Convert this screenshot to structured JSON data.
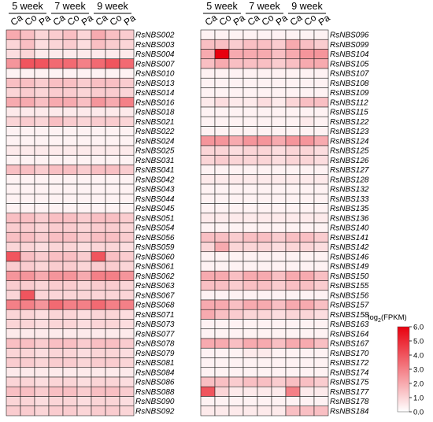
{
  "chart_data": [
    {
      "type": "heatmap",
      "week_groups": [
        "5 week",
        "7 week",
        "9 week"
      ],
      "columns": [
        "Ca",
        "Co",
        "Pa",
        "Ca",
        "Co",
        "Pa",
        "Ca",
        "Co",
        "Pa"
      ],
      "rows": [
        "RsNBS002",
        "RsNBS003",
        "RsNBS004",
        "RsNBS007",
        "RsNBS010",
        "RsNBS013",
        "RsNBS014",
        "RsNBS016",
        "RsNBS018",
        "RsNBS021",
        "RsNBS022",
        "RsNBS024",
        "RsNBS025",
        "RsNBS031",
        "RsNBS041",
        "RsNBS042",
        "RsNBS043",
        "RsNBS044",
        "RsNBS045",
        "RsNBS051",
        "RsNBS054",
        "RsNBS056",
        "RsNBS059",
        "RsNBS060",
        "RsNBS061",
        "RsNBS062",
        "RsNBS063",
        "RsNBS067",
        "RsNBS068",
        "RsNBS071",
        "RsNBS073",
        "RsNBS077",
        "RsNBS078",
        "RsNBS079",
        "RsNBS081",
        "RsNBS084",
        "RsNBS086",
        "RsNBS088",
        "RsNBS090",
        "RsNBS092"
      ],
      "values": [
        [
          2.0,
          1.5,
          1.0,
          1.2,
          1.5,
          1.0,
          2.0,
          1.5,
          1.2
        ],
        [
          1.0,
          1.5,
          0.8,
          1.0,
          1.2,
          0.8,
          1.5,
          1.2,
          1.0
        ],
        [
          0.8,
          1.0,
          0.5,
          0.5,
          0.5,
          0.5,
          0.5,
          0.5,
          0.5
        ],
        [
          2.5,
          4.0,
          4.0,
          3.5,
          3.5,
          3.0,
          3.5,
          4.0,
          3.5
        ],
        [
          0.3,
          0.3,
          0.3,
          0.3,
          0.3,
          0.3,
          0.3,
          0.3,
          0.3
        ],
        [
          1.5,
          1.5,
          1.2,
          1.5,
          1.5,
          1.2,
          1.5,
          1.5,
          1.2
        ],
        [
          1.0,
          1.2,
          1.0,
          1.2,
          1.2,
          1.0,
          1.2,
          1.2,
          1.0
        ],
        [
          2.0,
          2.0,
          1.5,
          2.0,
          2.0,
          1.5,
          2.5,
          2.0,
          3.0
        ],
        [
          0.5,
          0.5,
          0.5,
          0.5,
          0.5,
          0.5,
          0.5,
          0.5,
          0.5
        ],
        [
          1.0,
          1.2,
          1.0,
          1.5,
          1.2,
          1.0,
          1.2,
          1.2,
          1.0
        ],
        [
          0.3,
          0.3,
          0.3,
          0.3,
          0.3,
          0.3,
          0.3,
          0.3,
          0.3
        ],
        [
          0.3,
          0.3,
          0.3,
          0.3,
          0.3,
          0.3,
          0.3,
          0.3,
          0.3
        ],
        [
          0.5,
          0.5,
          0.5,
          0.5,
          0.5,
          0.5,
          0.5,
          0.5,
          0.5
        ],
        [
          0.3,
          0.3,
          0.3,
          0.3,
          0.3,
          0.3,
          0.3,
          0.3,
          0.3
        ],
        [
          1.5,
          1.5,
          1.2,
          1.5,
          1.5,
          1.2,
          1.5,
          1.5,
          1.2
        ],
        [
          0.3,
          0.3,
          0.3,
          0.3,
          0.3,
          0.3,
          0.3,
          0.3,
          0.3
        ],
        [
          0.3,
          0.3,
          0.3,
          0.3,
          0.3,
          0.3,
          0.3,
          0.3,
          0.3
        ],
        [
          0.3,
          0.3,
          0.3,
          0.3,
          0.3,
          0.3,
          0.3,
          0.3,
          0.3
        ],
        [
          0.3,
          0.3,
          0.3,
          0.3,
          0.3,
          0.3,
          0.3,
          0.3,
          0.3
        ],
        [
          1.5,
          1.5,
          1.2,
          1.5,
          1.5,
          1.2,
          1.5,
          1.5,
          1.2
        ],
        [
          1.2,
          1.2,
          1.0,
          1.2,
          1.2,
          1.0,
          1.2,
          1.2,
          1.0
        ],
        [
          1.5,
          1.5,
          1.2,
          1.5,
          1.5,
          1.2,
          1.5,
          1.5,
          1.2
        ],
        [
          1.0,
          1.0,
          0.8,
          1.0,
          1.0,
          0.8,
          1.0,
          1.0,
          0.8
        ],
        [
          4.0,
          1.5,
          1.2,
          1.5,
          1.5,
          1.2,
          4.0,
          1.5,
          1.2
        ],
        [
          1.2,
          1.2,
          1.0,
          1.2,
          1.2,
          1.0,
          1.2,
          1.2,
          1.0
        ],
        [
          2.5,
          2.5,
          2.0,
          2.5,
          2.5,
          2.0,
          3.0,
          3.0,
          2.5
        ],
        [
          1.2,
          1.2,
          1.0,
          1.2,
          1.2,
          1.0,
          1.2,
          1.2,
          1.0
        ],
        [
          1.0,
          4.0,
          1.0,
          1.0,
          1.0,
          1.0,
          1.0,
          1.0,
          1.0
        ],
        [
          3.0,
          3.0,
          2.5,
          3.5,
          3.0,
          3.0,
          3.5,
          3.0,
          3.0
        ],
        [
          1.0,
          1.0,
          0.8,
          1.0,
          1.0,
          0.8,
          1.0,
          1.0,
          0.8
        ],
        [
          1.0,
          1.0,
          0.8,
          1.0,
          1.0,
          0.8,
          1.0,
          1.0,
          0.8
        ],
        [
          0.5,
          0.5,
          0.5,
          0.5,
          0.5,
          0.5,
          0.5,
          0.5,
          0.5
        ],
        [
          1.5,
          1.5,
          1.2,
          1.5,
          1.5,
          1.2,
          1.5,
          1.5,
          1.2
        ],
        [
          1.0,
          1.0,
          0.8,
          1.0,
          1.0,
          0.8,
          1.0,
          1.0,
          0.8
        ],
        [
          1.2,
          1.2,
          1.0,
          1.2,
          1.2,
          1.0,
          1.2,
          1.2,
          1.0
        ],
        [
          0.5,
          0.5,
          0.5,
          0.5,
          0.5,
          0.5,
          0.5,
          0.5,
          0.5
        ],
        [
          1.0,
          1.0,
          0.8,
          1.0,
          1.0,
          0.8,
          1.0,
          1.0,
          0.8
        ],
        [
          1.5,
          1.5,
          1.2,
          1.5,
          1.5,
          1.2,
          1.5,
          1.5,
          1.2
        ],
        [
          1.0,
          1.0,
          0.8,
          1.0,
          1.0,
          0.8,
          1.0,
          1.0,
          0.8
        ],
        [
          1.2,
          1.2,
          1.0,
          1.2,
          1.2,
          1.0,
          1.2,
          1.2,
          1.0
        ]
      ]
    },
    {
      "type": "heatmap",
      "week_groups": [
        "5 week",
        "7 week",
        "9 week"
      ],
      "columns": [
        "Ca",
        "Co",
        "Pa",
        "Ca",
        "Co",
        "Pa",
        "Ca",
        "Co",
        "Pa"
      ],
      "rows": [
        "RsNBS096",
        "RsNBS099",
        "RsNBS104",
        "RsNBS105",
        "RsNBS107",
        "RsNBS108",
        "RsNBS109",
        "RsNBS112",
        "RsNBS115",
        "RsNBS122",
        "RsNBS123",
        "RsNBS124",
        "RsNBS125",
        "RsNBS126",
        "RsNBS127",
        "RsNBS128",
        "RsNBS132",
        "RsNBS133",
        "RsNBS135",
        "RsNBS136",
        "RsNBS140",
        "RsNBS141",
        "RsNBS142",
        "RsNBS146",
        "RsNBS149",
        "RsNBS150",
        "RsNBS155",
        "RsNBS156",
        "RsNBS157",
        "RsNBS158",
        "RsNBS163",
        "RsNBS164",
        "RsNBS167",
        "RsNBS170",
        "RsNBS172",
        "RsNBS174",
        "RsNBS175",
        "RsNBS177",
        "RsNBS178",
        "RsNBS184"
      ],
      "values": [
        [
          0.3,
          0.3,
          0.3,
          0.3,
          0.3,
          0.3,
          0.3,
          0.3,
          0.3
        ],
        [
          1.5,
          1.5,
          1.2,
          1.5,
          1.5,
          1.2,
          2.0,
          1.5,
          1.2
        ],
        [
          2.0,
          6.0,
          2.0,
          2.0,
          2.0,
          1.5,
          2.0,
          2.5,
          2.5
        ],
        [
          1.5,
          2.0,
          1.5,
          1.5,
          1.5,
          1.2,
          1.5,
          2.0,
          2.0
        ],
        [
          0.3,
          0.3,
          0.3,
          0.3,
          0.3,
          0.3,
          0.3,
          0.3,
          0.3
        ],
        [
          0.3,
          0.3,
          0.3,
          0.3,
          0.3,
          0.3,
          0.3,
          0.3,
          0.3
        ],
        [
          0.3,
          0.3,
          0.3,
          0.3,
          0.3,
          0.3,
          0.3,
          0.3,
          0.3
        ],
        [
          0.5,
          0.8,
          0.5,
          0.5,
          0.8,
          0.5,
          1.0,
          1.5,
          1.5
        ],
        [
          0.3,
          0.3,
          0.3,
          0.3,
          0.3,
          0.3,
          0.3,
          0.3,
          0.3
        ],
        [
          0.3,
          0.3,
          0.3,
          0.3,
          0.3,
          0.3,
          0.3,
          0.5,
          0.3
        ],
        [
          0.3,
          0.3,
          0.3,
          0.3,
          0.3,
          0.3,
          0.3,
          0.3,
          0.3
        ],
        [
          2.5,
          2.5,
          2.0,
          2.5,
          2.5,
          2.0,
          2.5,
          2.5,
          2.0
        ],
        [
          1.0,
          1.0,
          0.8,
          1.0,
          1.0,
          0.8,
          1.0,
          1.0,
          0.8
        ],
        [
          1.0,
          1.2,
          1.0,
          1.0,
          1.0,
          0.8,
          1.0,
          1.0,
          0.8
        ],
        [
          0.3,
          0.3,
          0.3,
          0.3,
          0.3,
          0.3,
          0.3,
          0.3,
          0.3
        ],
        [
          0.5,
          0.5,
          0.5,
          0.5,
          0.5,
          0.5,
          0.5,
          0.5,
          0.5
        ],
        [
          0.3,
          0.3,
          0.3,
          0.3,
          0.3,
          0.3,
          0.3,
          0.3,
          0.3
        ],
        [
          0.3,
          0.3,
          0.3,
          0.3,
          0.3,
          0.3,
          0.3,
          0.3,
          0.3
        ],
        [
          0.3,
          0.3,
          0.3,
          0.3,
          0.3,
          0.3,
          0.3,
          0.3,
          0.3
        ],
        [
          0.5,
          0.5,
          0.5,
          0.5,
          0.5,
          0.5,
          0.5,
          0.5,
          0.5
        ],
        [
          0.3,
          0.3,
          0.3,
          0.3,
          0.3,
          0.3,
          0.3,
          0.3,
          0.3
        ],
        [
          1.5,
          1.5,
          1.2,
          1.5,
          1.5,
          1.2,
          1.5,
          1.5,
          1.2
        ],
        [
          1.0,
          2.0,
          1.0,
          1.0,
          1.0,
          0.8,
          1.0,
          1.0,
          0.8
        ],
        [
          0.3,
          0.3,
          0.3,
          0.3,
          0.3,
          0.3,
          0.3,
          0.3,
          0.3
        ],
        [
          0.3,
          0.3,
          0.3,
          0.3,
          0.3,
          0.3,
          0.3,
          0.3,
          0.3
        ],
        [
          2.0,
          2.0,
          1.5,
          2.0,
          2.0,
          1.5,
          2.0,
          2.0,
          1.5
        ],
        [
          1.5,
          1.5,
          1.2,
          1.5,
          1.5,
          1.2,
          1.5,
          1.5,
          1.2
        ],
        [
          0.3,
          0.3,
          0.3,
          0.3,
          0.3,
          0.3,
          0.3,
          0.3,
          0.3
        ],
        [
          2.0,
          2.0,
          1.5,
          2.0,
          2.0,
          1.5,
          2.0,
          2.0,
          1.5
        ],
        [
          2.0,
          1.5,
          1.2,
          1.0,
          1.0,
          0.8,
          1.0,
          1.0,
          0.8
        ],
        [
          0.3,
          0.3,
          0.3,
          0.3,
          0.3,
          0.3,
          0.3,
          0.3,
          0.3
        ],
        [
          0.3,
          0.3,
          0.3,
          0.3,
          0.3,
          0.3,
          0.3,
          0.3,
          0.3
        ],
        [
          2.0,
          2.0,
          1.5,
          2.0,
          2.0,
          1.5,
          2.0,
          2.0,
          1.5
        ],
        [
          0.3,
          0.3,
          0.3,
          0.5,
          0.5,
          0.3,
          0.3,
          0.3,
          0.3
        ],
        [
          0.3,
          0.3,
          0.3,
          0.3,
          0.3,
          0.3,
          0.3,
          0.3,
          0.3
        ],
        [
          0.3,
          0.3,
          0.3,
          0.3,
          0.3,
          0.3,
          0.3,
          0.3,
          0.3
        ],
        [
          1.5,
          1.5,
          1.2,
          1.5,
          1.5,
          1.2,
          1.5,
          1.5,
          1.2
        ],
        [
          4.0,
          1.0,
          0.5,
          0.5,
          0.5,
          0.5,
          3.0,
          0.5,
          0.5
        ],
        [
          0.3,
          0.3,
          0.3,
          0.3,
          0.3,
          0.3,
          0.3,
          0.3,
          0.3
        ],
        [
          0.5,
          0.5,
          0.5,
          0.5,
          0.5,
          0.5,
          1.5,
          1.5,
          1.5
        ]
      ]
    }
  ],
  "legend": {
    "title_prefix": "log",
    "title_sub": "2",
    "title_suffix": "(FPKM)",
    "ticks": [
      "6.0",
      "5.0",
      "4.0",
      "3.0",
      "2.0",
      "1.0",
      "0.0"
    ],
    "min": 0,
    "max": 6,
    "color_low": "#ffffff",
    "color_high": "#e8000e"
  }
}
